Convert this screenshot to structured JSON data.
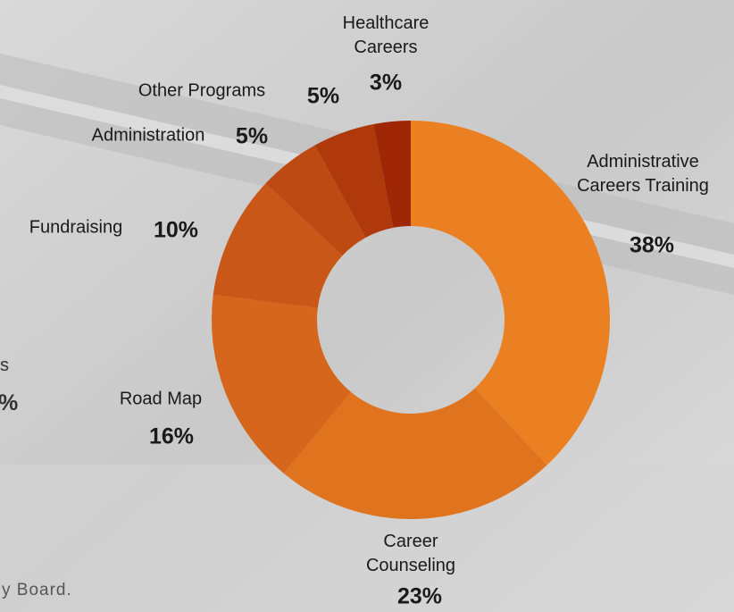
{
  "chart_data": {
    "type": "donut",
    "categories": [
      "Administrative Careers Training",
      "Career Counseling",
      "Road Map",
      "Fundraising",
      "Administration",
      "Other Programs",
      "Healthcare Careers"
    ],
    "values": [
      38,
      23,
      16,
      10,
      5,
      5,
      3
    ],
    "value_labels": [
      "38%",
      "23%",
      "16%",
      "10%",
      "5%",
      "5%",
      "3%"
    ],
    "colors": [
      "#ea8022",
      "#e0731e",
      "#d6661b",
      "#c95717",
      "#bc4a12",
      "#b0390b",
      "#a02705"
    ]
  },
  "background_text": [
    "s",
    "%",
    "y Board."
  ]
}
